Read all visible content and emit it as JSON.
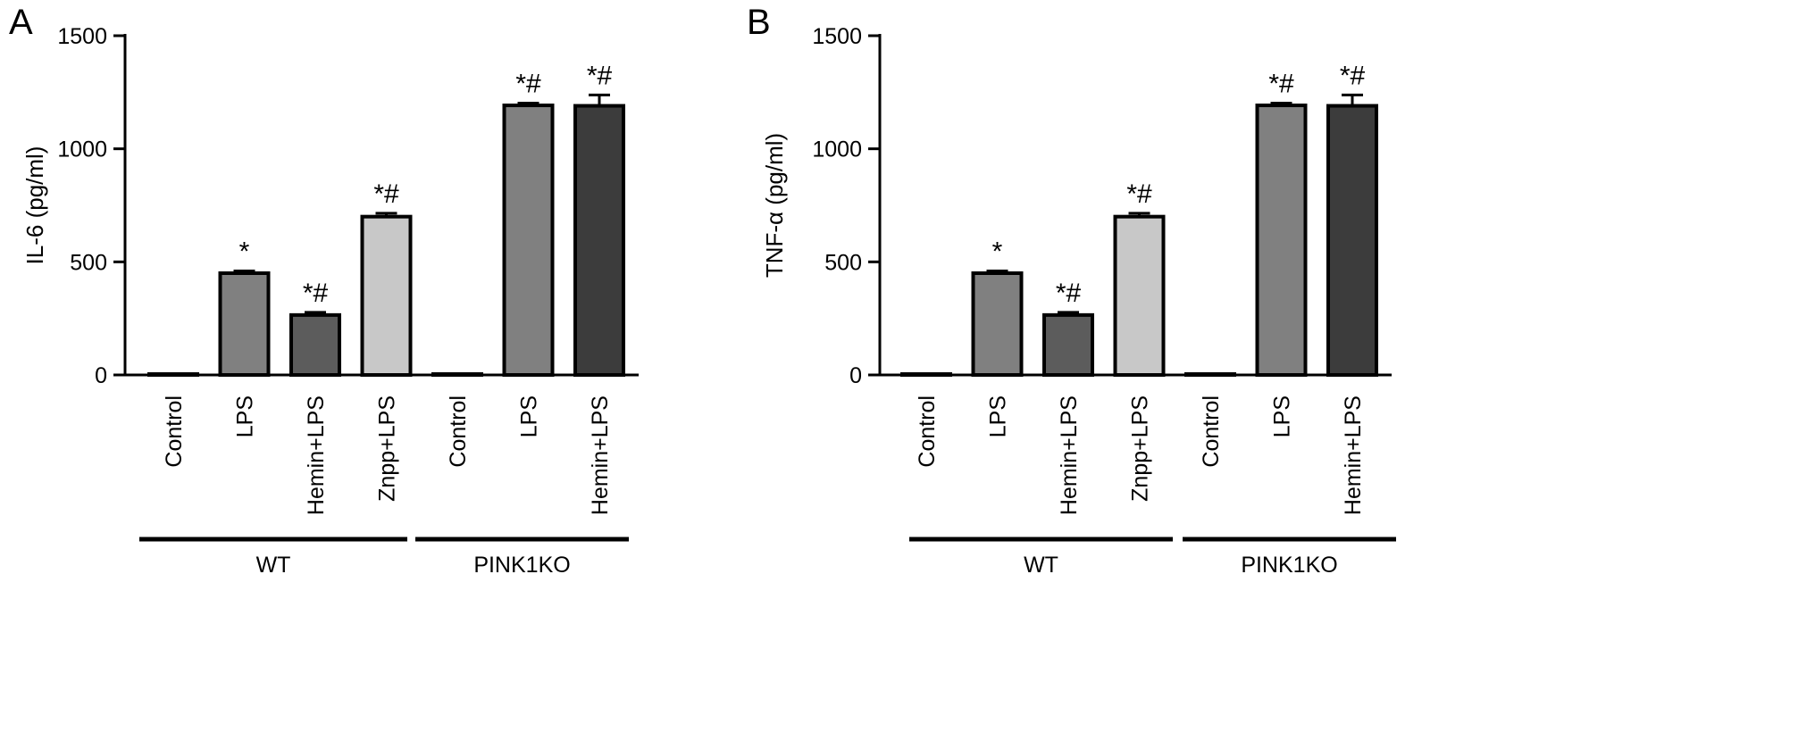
{
  "chart_data": [
    {
      "panel": "A",
      "type": "bar",
      "ylabel": "IL-6 (pg/ml)",
      "ylim": [
        0,
        1500
      ],
      "yticks": [
        0,
        500,
        1000,
        1500
      ],
      "categories": [
        "Control",
        "LPS",
        "Hemin+LPS",
        "Znpp+LPS",
        "Control",
        "LPS",
        "Hemin+LPS"
      ],
      "values": [
        4,
        450,
        265,
        700,
        4,
        1192,
        1190
      ],
      "errors": [
        2,
        10,
        12,
        15,
        2,
        10,
        48
      ],
      "annotations": [
        "",
        "*",
        "*#",
        "*#",
        "",
        "*#",
        "*#"
      ],
      "colors": [
        "#ffffff",
        "#808080",
        "#5c5c5c",
        "#c8c8c8",
        "#ffffff",
        "#808080",
        "#3c3c3c"
      ],
      "groups": [
        {
          "label": "WT",
          "from": 0,
          "to": 3
        },
        {
          "label": "PINK1KO",
          "from": 4,
          "to": 6
        }
      ],
      "grid": false
    },
    {
      "panel": "B",
      "type": "bar",
      "ylabel": "TNF-α (pg/ml)",
      "ylim": [
        0,
        1500
      ],
      "yticks": [
        0,
        500,
        1000,
        1500
      ],
      "categories": [
        "Control",
        "LPS",
        "Hemin+LPS",
        "Znpp+LPS",
        "Control",
        "LPS",
        "Hemin+LPS"
      ],
      "values": [
        4,
        450,
        265,
        700,
        4,
        1192,
        1190
      ],
      "errors": [
        2,
        10,
        12,
        15,
        2,
        10,
        48
      ],
      "annotations": [
        "",
        "*",
        "*#",
        "*#",
        "",
        "*#",
        "*#"
      ],
      "colors": [
        "#ffffff",
        "#808080",
        "#5c5c5c",
        "#c8c8c8",
        "#ffffff",
        "#808080",
        "#3c3c3c"
      ],
      "groups": [
        {
          "label": "WT",
          "from": 0,
          "to": 3
        },
        {
          "label": "PINK1KO",
          "from": 4,
          "to": 6
        }
      ],
      "grid": false
    }
  ]
}
